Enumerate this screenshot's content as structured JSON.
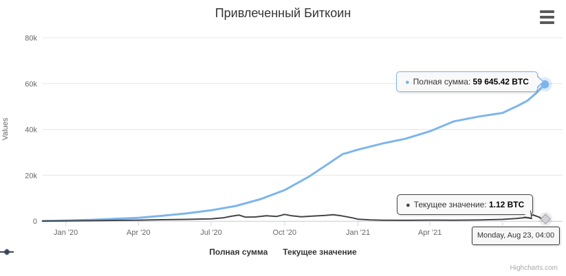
{
  "title": "Привлеченный Биткоин",
  "menu_icon": "hamburger-menu-icon",
  "credits": "Highcharts.com",
  "tooltips": {
    "full_sum": {
      "value": "59 645.42 BTC",
      "bullet": "●"
    },
    "current": {
      "value": "1.12 BTC",
      "bullet": "●"
    },
    "date": "Monday, Aug 23, 04:00"
  },
  "chart_data": {
    "type": "line",
    "title": "Привлеченный Биткоин",
    "xlabel": "",
    "ylabel": "Values",
    "ylim": [
      0,
      80000
    ],
    "xlim": [
      2,
      648
    ],
    "x_unit": "days since 2019-12-01",
    "grid": "horizontal",
    "legend_position": "bottom",
    "y_ticks": [
      {
        "v": 0,
        "label": "0"
      },
      {
        "v": 20000,
        "label": "20k"
      },
      {
        "v": 40000,
        "label": "40k"
      },
      {
        "v": 60000,
        "label": "60k"
      },
      {
        "v": 80000,
        "label": "80k"
      }
    ],
    "x_ticks": [
      {
        "t": 31,
        "label": "Jan '20"
      },
      {
        "t": 122,
        "label": "Apr '20"
      },
      {
        "t": 213,
        "label": "Jul '20"
      },
      {
        "t": 305,
        "label": "Oct '20"
      },
      {
        "t": 397,
        "label": "Jan '21"
      },
      {
        "t": 487,
        "label": "Apr '21"
      },
      {
        "t": 578,
        "label": "Jul '21"
      }
    ],
    "series": [
      {
        "name": "Полная сумма",
        "color": "#7cb5ec",
        "marker": "circle",
        "last_value_label": "59 645.42 BTC",
        "points": [
          [
            2,
            0
          ],
          [
            31,
            250
          ],
          [
            62,
            550
          ],
          [
            91,
            950
          ],
          [
            122,
            1400
          ],
          [
            152,
            2300
          ],
          [
            183,
            3400
          ],
          [
            213,
            4700
          ],
          [
            244,
            6600
          ],
          [
            275,
            9600
          ],
          [
            305,
            13500
          ],
          [
            336,
            19500
          ],
          [
            366,
            26500
          ],
          [
            378,
            29300
          ],
          [
            382,
            29600
          ],
          [
            397,
            31200
          ],
          [
            428,
            33900
          ],
          [
            456,
            35900
          ],
          [
            487,
            39200
          ],
          [
            517,
            43500
          ],
          [
            548,
            45600
          ],
          [
            578,
            47200
          ],
          [
            598,
            50500
          ],
          [
            609,
            52500
          ],
          [
            620,
            55800
          ],
          [
            631,
            59645.42
          ]
        ]
      },
      {
        "name": "Текущее значение",
        "color": "#434348",
        "marker": "diamond",
        "last_value_label": "1.12 BTC",
        "points": [
          [
            2,
            30
          ],
          [
            31,
            100
          ],
          [
            62,
            190
          ],
          [
            91,
            290
          ],
          [
            122,
            430
          ],
          [
            152,
            600
          ],
          [
            183,
            760
          ],
          [
            213,
            950
          ],
          [
            228,
            1400
          ],
          [
            238,
            2100
          ],
          [
            248,
            2600
          ],
          [
            256,
            1700
          ],
          [
            268,
            1800
          ],
          [
            282,
            2300
          ],
          [
            295,
            2000
          ],
          [
            305,
            2900
          ],
          [
            314,
            2300
          ],
          [
            326,
            1900
          ],
          [
            340,
            2200
          ],
          [
            356,
            2500
          ],
          [
            366,
            2800
          ],
          [
            376,
            2300
          ],
          [
            390,
            1400
          ],
          [
            397,
            800
          ],
          [
            412,
            500
          ],
          [
            428,
            380
          ],
          [
            456,
            320
          ],
          [
            487,
            420
          ],
          [
            517,
            350
          ],
          [
            548,
            470
          ],
          [
            578,
            750
          ],
          [
            595,
            1100
          ],
          [
            608,
            1600
          ],
          [
            616,
            2700
          ],
          [
            624,
            1700
          ],
          [
            631,
            1.12
          ]
        ]
      }
    ]
  }
}
